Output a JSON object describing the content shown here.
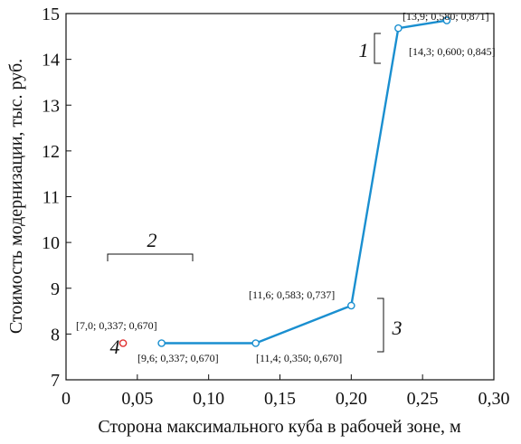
{
  "chart_data": {
    "type": "line",
    "xlabel": "Сторона максимального куба в рабочей зоне, м",
    "ylabel": "Стоимость модернизации, тыс. руб.",
    "xlim": [
      0,
      0.3
    ],
    "ylim": [
      7,
      15
    ],
    "x_ticks": [
      0,
      0.05,
      0.1,
      0.15,
      0.2,
      0.25,
      0.3
    ],
    "x_tick_labels": [
      "0",
      "0,05",
      "0,10",
      "0,15",
      "0,20",
      "0,25",
      "0,30"
    ],
    "y_ticks": [
      7,
      8,
      9,
      10,
      11,
      12,
      13,
      14,
      15
    ],
    "y_tick_labels": [
      "7",
      "8",
      "9",
      "10",
      "11",
      "12",
      "13",
      "14",
      "15"
    ],
    "grid": false,
    "series_color": "#1a8fd0",
    "outlier_color": "#e03030",
    "series": [
      {
        "x": [
          0.067,
          0.133,
          0.2,
          0.233,
          0.267
        ],
        "y": [
          7.8,
          7.8,
          8.62,
          14.68,
          14.85
        ]
      }
    ],
    "outlier": {
      "x": 0.04,
      "y": 7.8
    },
    "point_labels": [
      "[7,0; 0,337; 0,670]",
      "[9,6; 0,337; 0,670]",
      "[11,4; 0,350; 0,670]",
      "[11,6; 0,583; 0,737]",
      "[14,3; 0,600; 0,845]",
      "[13,9; 0,580; 0,871]"
    ],
    "group_labels": [
      "1",
      "2",
      "3",
      "4"
    ]
  }
}
